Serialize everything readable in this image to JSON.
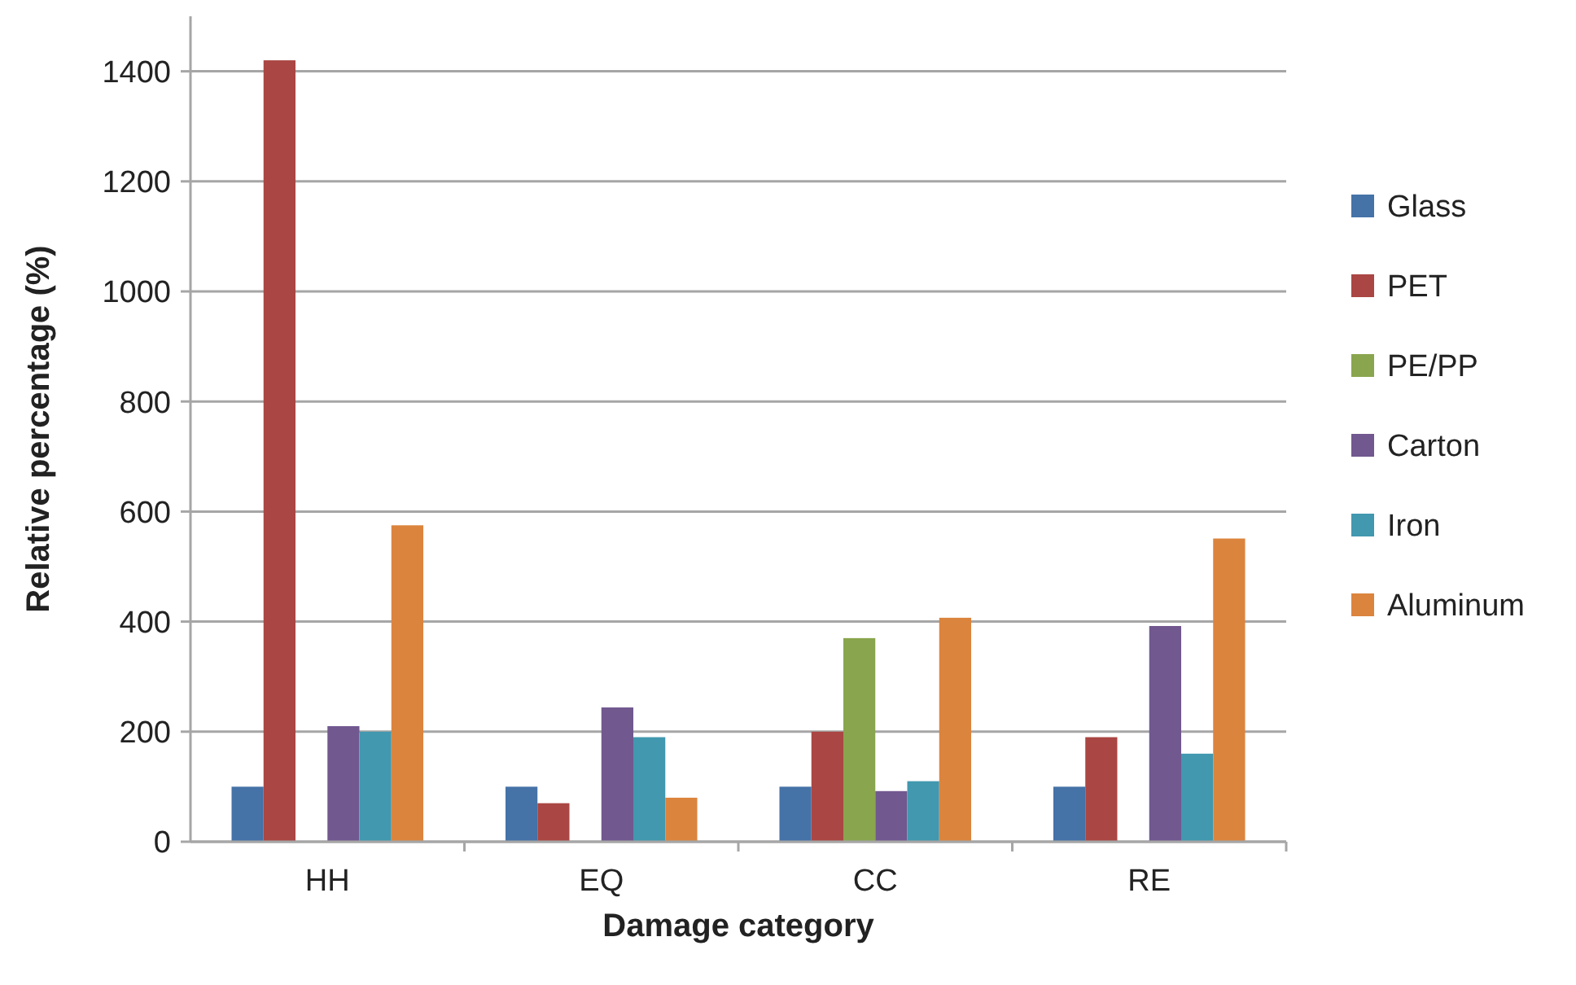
{
  "chart_data": {
    "type": "bar",
    "xlabel": "Damage category",
    "ylabel": "Relative percentage (%)",
    "categories": [
      "HH",
      "EQ",
      "CC",
      "RE"
    ],
    "series": [
      {
        "name": "Glass",
        "color": "#4572a7",
        "values": [
          100,
          100,
          100,
          100
        ]
      },
      {
        "name": "PET",
        "color": "#aa4643",
        "values": [
          1420,
          70,
          200,
          190
        ]
      },
      {
        "name": "PE/PP",
        "color": "#89a54e",
        "values": [
          0,
          0,
          370,
          0
        ]
      },
      {
        "name": "Carton",
        "color": "#71588f",
        "values": [
          210,
          244,
          92,
          392
        ]
      },
      {
        "name": "Iron",
        "color": "#4198af",
        "values": [
          200,
          190,
          110,
          160
        ]
      },
      {
        "name": "Aluminum",
        "color": "#db843d",
        "values": [
          575,
          80,
          407,
          551
        ]
      }
    ],
    "ylim": [
      0,
      1500
    ],
    "yticks": [
      0,
      200,
      400,
      600,
      800,
      1000,
      1200,
      1400
    ],
    "grid": "y",
    "legend": "right"
  }
}
